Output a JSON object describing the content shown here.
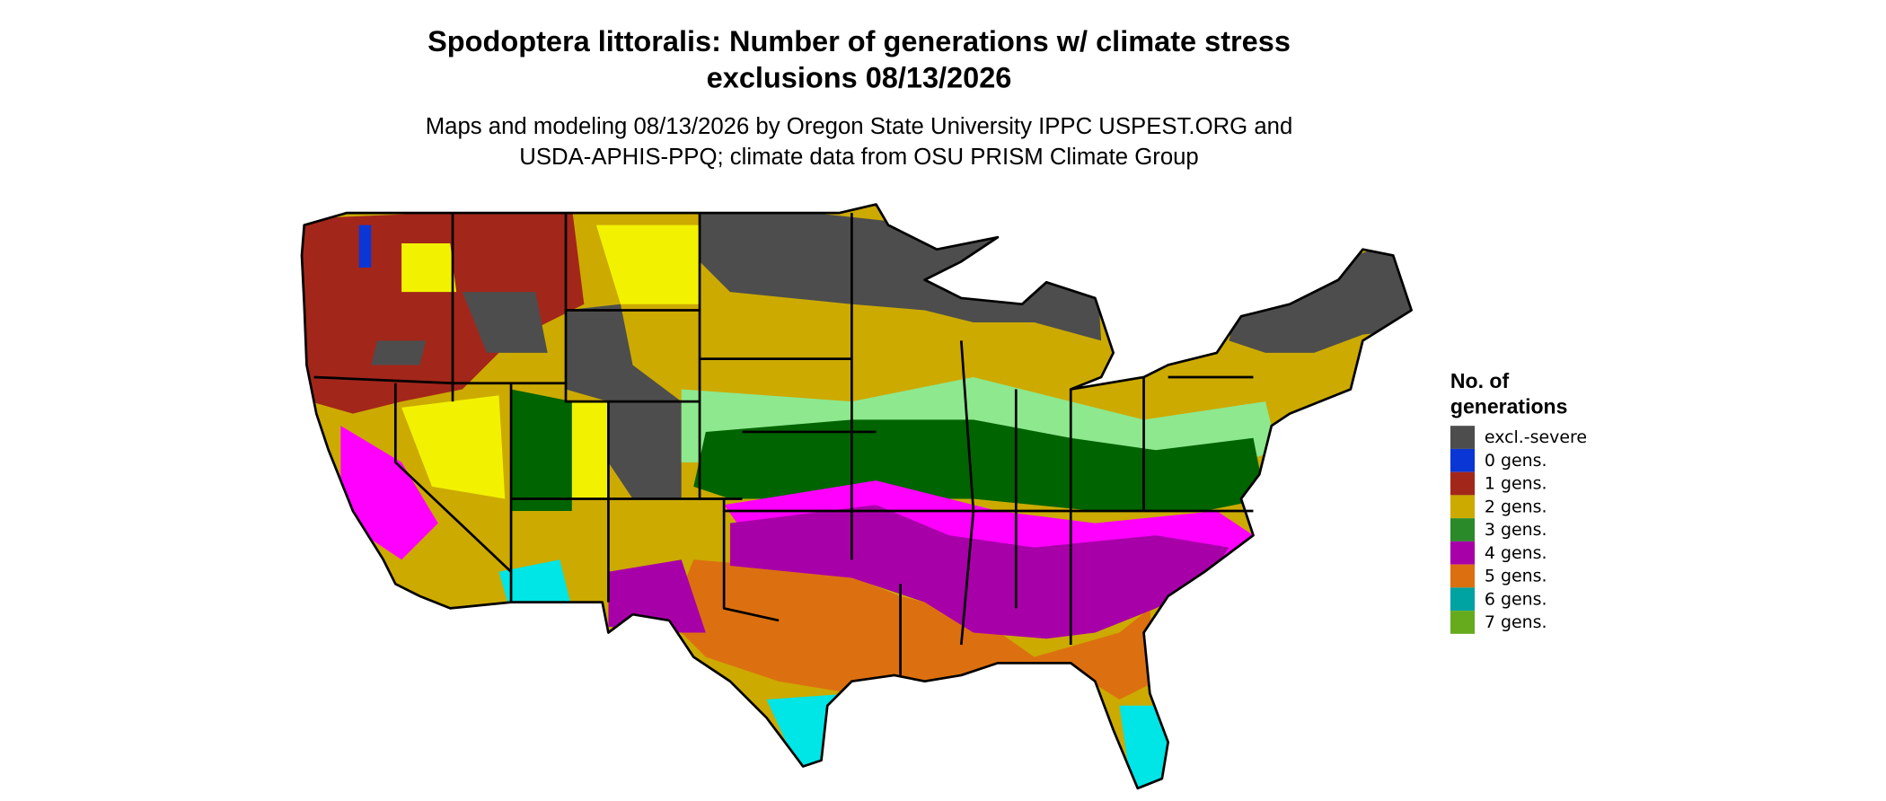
{
  "title": [
    "Spodoptera littoralis: Number of generations w/ climate stress",
    "exclusions 08/13/2026"
  ],
  "subtitle": [
    "Maps and modeling 08/13/2026 by Oregon State University IPPC USPEST.ORG and",
    "USDA-APHIS-PPQ; climate data from OSU PRISM Climate Group"
  ],
  "legend": {
    "title": [
      "No. of",
      "generations"
    ],
    "items": [
      {
        "label": "excl.-severe",
        "color": "#4d4d4d"
      },
      {
        "label": "0 gens.",
        "color": "#0a36d6"
      },
      {
        "label": "1 gens.",
        "color": "#a3261a"
      },
      {
        "label": "2 gens.",
        "color": "#ccaa00"
      },
      {
        "label": "3 gens.",
        "color": "#2a8a2a"
      },
      {
        "label": "4 gens.",
        "color": "#a800a8"
      },
      {
        "label": "5 gens.",
        "color": "#dc7010"
      },
      {
        "label": "6 gens.",
        "color": "#00a2a2"
      },
      {
        "label": "7 gens.",
        "color": "#66aa1e"
      }
    ]
  }
}
